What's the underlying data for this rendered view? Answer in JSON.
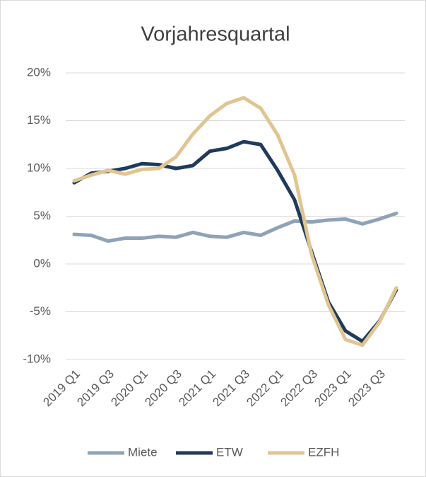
{
  "chart_data": {
    "type": "line",
    "title": "Vorjahresquartal",
    "categories": [
      "2019 Q1",
      null,
      "2019 Q3",
      null,
      "2020 Q1",
      null,
      "2020 Q3",
      null,
      "2021 Q1",
      null,
      "2021 Q3",
      null,
      "2022 Q1",
      null,
      "2022 Q3",
      null,
      "2023 Q1",
      null,
      "2023 Q3",
      null
    ],
    "series": [
      {
        "name": "Miete",
        "color": "#8fa3b8",
        "values": [
          3.1,
          3.0,
          2.4,
          2.7,
          2.7,
          2.9,
          2.8,
          3.3,
          2.9,
          2.8,
          3.3,
          3.0,
          3.8,
          4.5,
          4.4,
          4.6,
          4.7,
          4.2,
          4.7,
          5.3
        ]
      },
      {
        "name": "ETW",
        "color": "#1f3a5a",
        "values": [
          8.5,
          9.5,
          9.7,
          10.0,
          10.5,
          10.4,
          10.0,
          10.3,
          11.8,
          12.1,
          12.8,
          12.5,
          9.8,
          6.7,
          1.3,
          -4.0,
          -7.0,
          -8.1,
          -6.0,
          -2.7
        ]
      },
      {
        "name": "EZFH",
        "color": "#e0c592",
        "values": [
          8.7,
          9.3,
          9.8,
          9.4,
          9.9,
          10.0,
          11.2,
          13.6,
          15.5,
          16.8,
          17.4,
          16.3,
          13.5,
          9.3,
          1.0,
          -4.3,
          -7.9,
          -8.5,
          -6.1,
          -2.5
        ]
      }
    ],
    "ylim": [
      -10,
      20
    ],
    "yticks": [
      {
        "value": -10,
        "label": "-10%"
      },
      {
        "value": -5,
        "label": "-5%"
      },
      {
        "value": 0,
        "label": "0%"
      },
      {
        "value": 5,
        "label": "5%"
      },
      {
        "value": 10,
        "label": "10%"
      },
      {
        "value": 15,
        "label": "15%"
      },
      {
        "value": 20,
        "label": "20%"
      }
    ],
    "grid": true,
    "legend": "bottom"
  }
}
